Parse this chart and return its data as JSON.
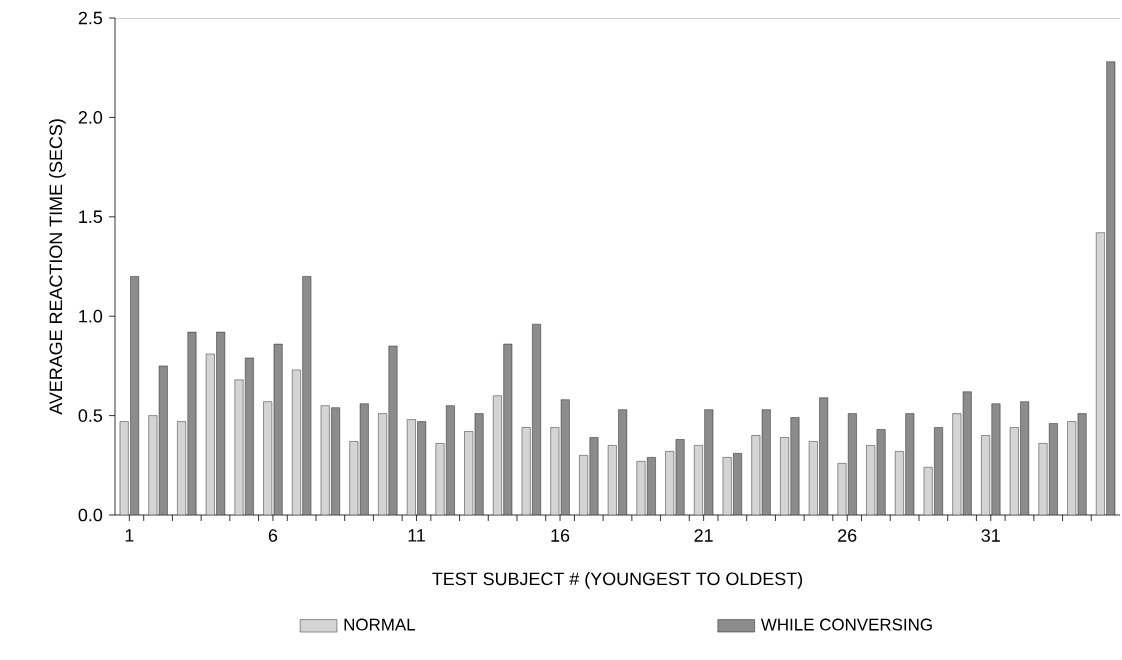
{
  "chart_data": {
    "type": "bar",
    "xlabel": "TEST SUBJECT # (YOUNGEST TO OLDEST)",
    "ylabel": "AVERAGE REACTION TIME (SECS)",
    "categories": [
      "1",
      null,
      null,
      null,
      null,
      "6",
      null,
      null,
      null,
      null,
      "11",
      null,
      null,
      null,
      null,
      "16",
      null,
      null,
      null,
      null,
      "21",
      null,
      null,
      null,
      null,
      "26",
      null,
      null,
      null,
      null,
      "31",
      null,
      null,
      null,
      null
    ],
    "series": [
      {
        "name": "NORMAL",
        "color": "#d4d4d4",
        "values": [
          0.47,
          0.5,
          0.47,
          0.81,
          0.68,
          0.57,
          0.73,
          0.55,
          0.37,
          0.51,
          0.48,
          0.36,
          0.42,
          0.6,
          0.44,
          0.44,
          0.3,
          0.35,
          0.27,
          0.32,
          0.35,
          0.29,
          0.4,
          0.39,
          0.37,
          0.26,
          0.35,
          0.32,
          0.24,
          0.51,
          0.4,
          0.44,
          0.36,
          0.47,
          1.42
        ]
      },
      {
        "name": "WHILE CONVERSING",
        "color": "#8c8c8c",
        "values": [
          1.2,
          0.75,
          0.92,
          0.92,
          0.79,
          0.86,
          1.2,
          0.54,
          0.56,
          0.85,
          0.47,
          0.55,
          0.51,
          0.86,
          0.96,
          0.58,
          0.39,
          0.53,
          0.29,
          0.38,
          0.53,
          0.31,
          0.53,
          0.49,
          0.59,
          0.51,
          0.43,
          0.51,
          0.44,
          0.62,
          0.56,
          0.57,
          0.46,
          0.51,
          2.28
        ]
      }
    ],
    "ylim": [
      0,
      2.5
    ],
    "yticks": [
      {
        "value": 0,
        "label": "0.0"
      },
      0.5,
      {
        "value": 1,
        "label": "1.0"
      },
      1.5,
      {
        "value": 2,
        "label": "2.0"
      },
      2.5
    ],
    "legend": "bottom"
  }
}
